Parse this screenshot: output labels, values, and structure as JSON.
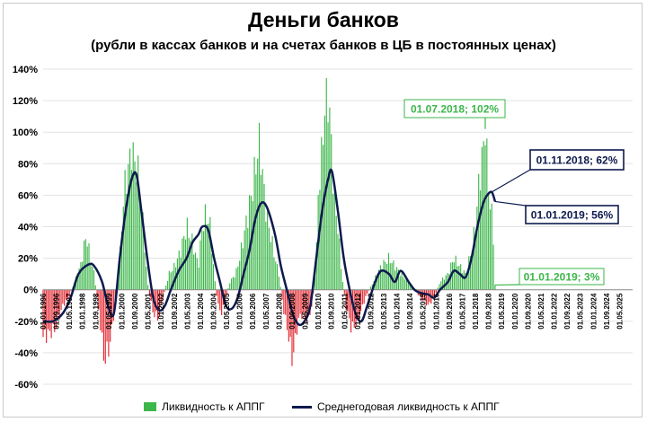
{
  "chart_data": {
    "type": "bar",
    "title": "Деньги банков",
    "subtitle": "(рубли в кассах банков и на счетах банков в ЦБ в постоянных ценах)",
    "ylim": [
      -60,
      140
    ],
    "yticks": [
      "140%",
      "120%",
      "100%",
      "80%",
      "60%",
      "40%",
      "20%",
      "0%",
      "-20%",
      "-40%",
      "-60%"
    ],
    "ytick_values": [
      140,
      120,
      100,
      80,
      60,
      40,
      20,
      0,
      -20,
      -40,
      -60
    ],
    "xlim": [
      1996.0,
      2026.0
    ],
    "xticks": [
      "01.01.1996",
      "01.09.1996",
      "01.05.1997",
      "01.01.1998",
      "01.09.1998",
      "01.05.1999",
      "01.01.2000",
      "01.09.2000",
      "01.05.2001",
      "01.01.2002",
      "01.09.2002",
      "01.05.2003",
      "01.01.2004",
      "01.09.2004",
      "01.05.2005",
      "01.01.2006",
      "01.09.2006",
      "01.05.2007",
      "01.01.2008",
      "01.09.2008",
      "01.05.2009",
      "01.01.2010",
      "01.09.2010",
      "01.05.2011",
      "01.01.2012",
      "01.09.2012",
      "01.05.2013",
      "01.01.2014",
      "01.09.2014",
      "01.05.2015",
      "01.01.2016",
      "01.09.2016",
      "01.05.2017",
      "01.01.2018",
      "01.09.2018",
      "01.05.2019",
      "01.01.2020",
      "01.09.2020",
      "01.05.2021",
      "01.01.2022",
      "01.09.2022",
      "01.05.2023",
      "01.01.2024",
      "01.09.2024",
      "01.05.2025"
    ],
    "bar_color_positive": "#3cb64a",
    "bar_color_negative": "#e1222b",
    "line_color": "#0e1a4e",
    "series": [
      {
        "name": "Ликвидность к АППГ",
        "kind": "bar",
        "keypoints": [
          [
            1996.0,
            -30
          ],
          [
            1996.6,
            -25
          ],
          [
            1997.0,
            -10
          ],
          [
            1997.3,
            -5
          ],
          [
            1997.6,
            5
          ],
          [
            1997.9,
            15
          ],
          [
            1998.2,
            35
          ],
          [
            1998.4,
            20
          ],
          [
            1998.6,
            10
          ],
          [
            1998.9,
            -20
          ],
          [
            1999.1,
            -45
          ],
          [
            1999.4,
            -35
          ],
          [
            1999.6,
            -15
          ],
          [
            1999.9,
            20
          ],
          [
            2000.1,
            60
          ],
          [
            2000.3,
            75
          ],
          [
            2000.5,
            88
          ],
          [
            2000.7,
            80
          ],
          [
            2000.9,
            70
          ],
          [
            2001.1,
            40
          ],
          [
            2001.3,
            5
          ],
          [
            2001.6,
            -15
          ],
          [
            2001.9,
            -18
          ],
          [
            2002.1,
            -5
          ],
          [
            2002.4,
            10
          ],
          [
            2002.7,
            15
          ],
          [
            2003.0,
            25
          ],
          [
            2003.3,
            40
          ],
          [
            2003.6,
            30
          ],
          [
            2003.9,
            15
          ],
          [
            2004.1,
            40
          ],
          [
            2004.3,
            48
          ],
          [
            2004.5,
            40
          ],
          [
            2004.7,
            10
          ],
          [
            2004.9,
            -10
          ],
          [
            2005.1,
            -15
          ],
          [
            2005.3,
            -5
          ],
          [
            2005.5,
            5
          ],
          [
            2005.8,
            10
          ],
          [
            2006.0,
            20
          ],
          [
            2006.3,
            40
          ],
          [
            2006.6,
            60
          ],
          [
            2006.9,
            85
          ],
          [
            2007.0,
            95
          ],
          [
            2007.3,
            55
          ],
          [
            2007.5,
            40
          ],
          [
            2007.8,
            20
          ],
          [
            2008.0,
            10
          ],
          [
            2008.2,
            -10
          ],
          [
            2008.5,
            -30
          ],
          [
            2008.7,
            -45
          ],
          [
            2008.9,
            -25
          ],
          [
            2009.1,
            -15
          ],
          [
            2009.4,
            -20
          ],
          [
            2009.7,
            -10
          ],
          [
            2009.9,
            20
          ],
          [
            2010.0,
            60
          ],
          [
            2010.2,
            90
          ],
          [
            2010.4,
            125
          ],
          [
            2010.6,
            110
          ],
          [
            2010.8,
            60
          ],
          [
            2011.0,
            40
          ],
          [
            2011.2,
            10
          ],
          [
            2011.4,
            -10
          ],
          [
            2011.7,
            -25
          ],
          [
            2012.0,
            -20
          ],
          [
            2012.4,
            -5
          ],
          [
            2012.8,
            5
          ],
          [
            2013.2,
            15
          ],
          [
            2013.6,
            20
          ],
          [
            2013.9,
            15
          ],
          [
            2014.2,
            10
          ],
          [
            2014.6,
            5
          ],
          [
            2014.9,
            0
          ],
          [
            2015.2,
            -5
          ],
          [
            2015.6,
            -10
          ],
          [
            2015.9,
            -5
          ],
          [
            2016.2,
            5
          ],
          [
            2016.6,
            10
          ],
          [
            2016.9,
            20
          ],
          [
            2017.2,
            15
          ],
          [
            2017.5,
            10
          ],
          [
            2017.8,
            25
          ],
          [
            2018.0,
            40
          ],
          [
            2018.2,
            70
          ],
          [
            2018.4,
            90
          ],
          [
            2018.5,
            102
          ],
          [
            2018.7,
            60
          ],
          [
            2018.9,
            40
          ],
          [
            2019.0,
            3
          ]
        ]
      },
      {
        "name": "Среднегодовая ликвидность к АППГ",
        "kind": "line",
        "points": [
          [
            1996.0,
            -20
          ],
          [
            1996.5,
            -20
          ],
          [
            1997.0,
            -15
          ],
          [
            1997.4,
            -5
          ],
          [
            1997.8,
            10
          ],
          [
            1998.3,
            16
          ],
          [
            1998.6,
            15
          ],
          [
            1999.0,
            5
          ],
          [
            1999.3,
            -10
          ],
          [
            1999.6,
            -15
          ],
          [
            1999.9,
            20
          ],
          [
            2000.2,
            50
          ],
          [
            2000.5,
            70
          ],
          [
            2000.75,
            73
          ],
          [
            2001.0,
            50
          ],
          [
            2001.3,
            20
          ],
          [
            2001.6,
            -5
          ],
          [
            2001.9,
            -13
          ],
          [
            2002.2,
            -10
          ],
          [
            2002.5,
            0
          ],
          [
            2002.9,
            12
          ],
          [
            2003.3,
            20
          ],
          [
            2003.6,
            30
          ],
          [
            2003.9,
            35
          ],
          [
            2004.1,
            40
          ],
          [
            2004.4,
            38
          ],
          [
            2004.7,
            20
          ],
          [
            2005.0,
            5
          ],
          [
            2005.3,
            -10
          ],
          [
            2005.6,
            -12
          ],
          [
            2005.9,
            -5
          ],
          [
            2006.2,
            10
          ],
          [
            2006.5,
            25
          ],
          [
            2006.8,
            45
          ],
          [
            2007.1,
            55
          ],
          [
            2007.4,
            52
          ],
          [
            2007.8,
            35
          ],
          [
            2008.1,
            15
          ],
          [
            2008.4,
            0
          ],
          [
            2008.7,
            -15
          ],
          [
            2009.0,
            -22
          ],
          [
            2009.3,
            -20
          ],
          [
            2009.6,
            -10
          ],
          [
            2009.9,
            20
          ],
          [
            2010.2,
            50
          ],
          [
            2010.5,
            70
          ],
          [
            2010.7,
            75
          ],
          [
            2011.0,
            50
          ],
          [
            2011.3,
            20
          ],
          [
            2011.6,
            0
          ],
          [
            2011.9,
            -15
          ],
          [
            2012.2,
            -20
          ],
          [
            2012.5,
            -10
          ],
          [
            2012.9,
            5
          ],
          [
            2013.2,
            12
          ],
          [
            2013.6,
            10
          ],
          [
            2013.9,
            5
          ],
          [
            2014.2,
            12
          ],
          [
            2014.6,
            5
          ],
          [
            2014.9,
            0
          ],
          [
            2015.2,
            -2
          ],
          [
            2015.6,
            -3
          ],
          [
            2015.9,
            -5
          ],
          [
            2016.2,
            0
          ],
          [
            2016.6,
            5
          ],
          [
            2016.9,
            12
          ],
          [
            2017.2,
            10
          ],
          [
            2017.5,
            8
          ],
          [
            2017.8,
            20
          ],
          [
            2018.1,
            40
          ],
          [
            2018.4,
            55
          ],
          [
            2018.6,
            60
          ],
          [
            2018.83,
            62
          ],
          [
            2019.0,
            56
          ]
        ]
      }
    ],
    "annotations": [
      {
        "label": "01.07.2018; 102%",
        "x": 2018.5,
        "y": 102,
        "style": "green"
      },
      {
        "label": "01.11.2018; 62%",
        "x": 2018.83,
        "y": 62,
        "style": "navy"
      },
      {
        "label": "01.01.2019; 56%",
        "x": 2019.0,
        "y": 56,
        "style": "navy"
      },
      {
        "label": "01.01.2019; 3%",
        "x": 2019.0,
        "y": 3,
        "style": "green"
      }
    ]
  },
  "legend": {
    "bar_label": "Ликвидность к АППГ",
    "line_label": "Среднегодовая ликвидность к АППГ"
  }
}
